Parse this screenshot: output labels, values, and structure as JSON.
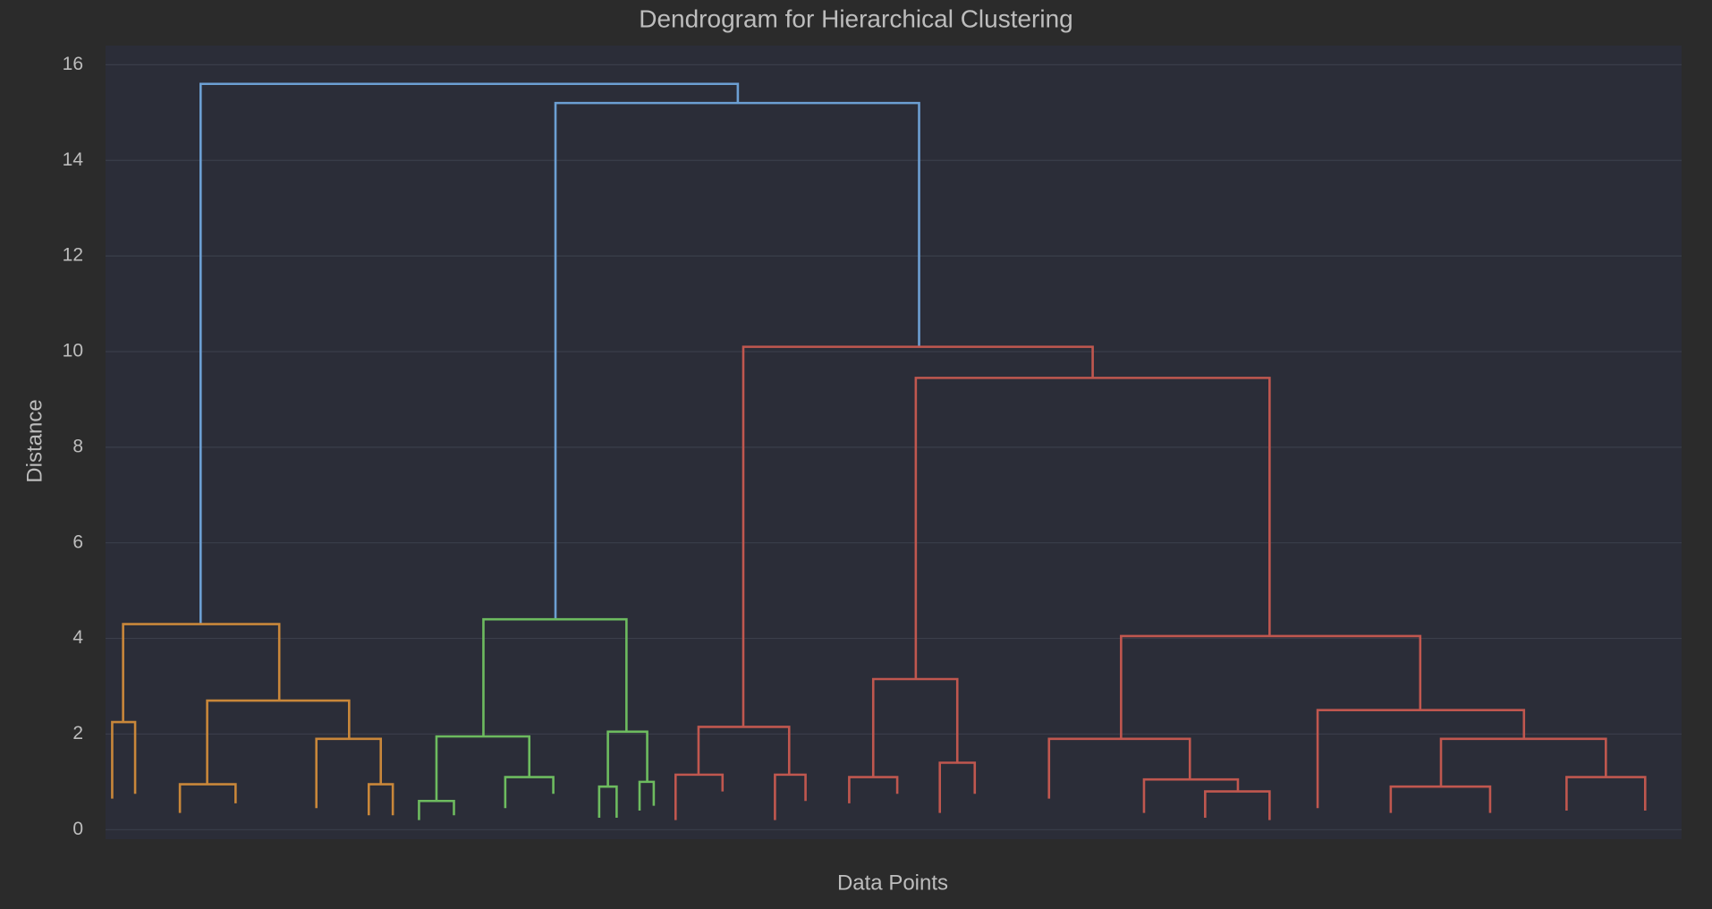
{
  "chart_data": {
    "type": "dendrogram",
    "title": "Dendrogram for Hierarchical Clustering",
    "x_label": "Data Points",
    "y_label": "Distance",
    "ylim": [
      -0.2,
      16.4
    ],
    "yticks": [
      0,
      2,
      4,
      6,
      8,
      10,
      12,
      14,
      16
    ],
    "xlim": [
      0,
      1450
    ],
    "grid": true,
    "links": [
      {
        "x": [
          92,
          92,
          584,
          584
        ],
        "y": [
          4.3,
          15.6,
          15.6,
          15.2
        ],
        "color": "#6c9fd3"
      },
      {
        "x": [
          417,
          417,
          750,
          750
        ],
        "y": [
          4.4,
          15.2,
          15.2,
          10.1
        ],
        "color": "#6c9fd3"
      },
      {
        "x": [
          21,
          21,
          164,
          164
        ],
        "y": [
          2.25,
          4.3,
          4.3,
          2.7
        ],
        "color": "#c9873a"
      },
      {
        "x": [
          11,
          11,
          32,
          32
        ],
        "y": [
          0.65,
          2.25,
          2.25,
          0.75
        ],
        "color": "#c9873a"
      },
      {
        "x": [
          98,
          98,
          228,
          228
        ],
        "y": [
          0.95,
          2.7,
          2.7,
          1.9
        ],
        "color": "#c9873a"
      },
      {
        "x": [
          198,
          198,
          257,
          257
        ],
        "y": [
          0.45,
          1.9,
          1.9,
          0.95
        ],
        "color": "#c9873a"
      },
      {
        "x": [
          73,
          73,
          124,
          124
        ],
        "y": [
          0.35,
          0.95,
          0.95,
          0.55
        ],
        "color": "#c9873a"
      },
      {
        "x": [
          246,
          246,
          268,
          268
        ],
        "y": [
          0.3,
          0.95,
          0.95,
          0.3
        ],
        "color": "#c9873a"
      },
      {
        "x": [
          351,
          351,
          482,
          482
        ],
        "y": [
          1.95,
          4.4,
          4.4,
          2.05
        ],
        "color": "#6dbb5f"
      },
      {
        "x": [
          308,
          308,
          393,
          393
        ],
        "y": [
          0.6,
          1.95,
          1.95,
          1.1
        ],
        "color": "#6dbb5f"
      },
      {
        "x": [
          292,
          292,
          324,
          324
        ],
        "y": [
          0.2,
          0.6,
          0.6,
          0.3
        ],
        "color": "#6dbb5f"
      },
      {
        "x": [
          371,
          371,
          415,
          415
        ],
        "y": [
          0.45,
          1.1,
          1.1,
          0.75
        ],
        "color": "#6dbb5f"
      },
      {
        "x": [
          465,
          465,
          501,
          501
        ],
        "y": [
          0.9,
          2.05,
          2.05,
          1.0
        ],
        "color": "#6dbb5f"
      },
      {
        "x": [
          457,
          457,
          473,
          473
        ],
        "y": [
          0.25,
          0.9,
          0.9,
          0.25
        ],
        "color": "#6dbb5f"
      },
      {
        "x": [
          494,
          494,
          507,
          507
        ],
        "y": [
          0.4,
          1.0,
          1.0,
          0.5
        ],
        "color": "#6dbb5f"
      },
      {
        "x": [
          589,
          589,
          909,
          909
        ],
        "y": [
          2.15,
          10.1,
          10.1,
          9.45
        ],
        "color": "#c0574f"
      },
      {
        "x": [
          747,
          747,
          1071,
          1071
        ],
        "y": [
          3.15,
          9.45,
          9.45,
          4.05
        ],
        "color": "#c0574f"
      },
      {
        "x": [
          548,
          548,
          631,
          631
        ],
        "y": [
          1.15,
          2.15,
          2.15,
          1.15
        ],
        "color": "#c0574f"
      },
      {
        "x": [
          527,
          527,
          570,
          570
        ],
        "y": [
          0.2,
          1.15,
          1.15,
          0.8
        ],
        "color": "#c0574f"
      },
      {
        "x": [
          618,
          618,
          646,
          646
        ],
        "y": [
          0.2,
          1.15,
          1.15,
          0.6
        ],
        "color": "#c0574f"
      },
      {
        "x": [
          708,
          708,
          785,
          785
        ],
        "y": [
          1.1,
          3.15,
          3.15,
          1.4
        ],
        "color": "#c0574f"
      },
      {
        "x": [
          686,
          686,
          730,
          730
        ],
        "y": [
          0.55,
          1.1,
          1.1,
          0.75
        ],
        "color": "#c0574f"
      },
      {
        "x": [
          769,
          769,
          801,
          801
        ],
        "y": [
          0.35,
          1.4,
          1.4,
          0.75
        ],
        "color": "#c0574f"
      },
      {
        "x": [
          935,
          935,
          1209,
          1209
        ],
        "y": [
          1.9,
          4.05,
          4.05,
          2.5
        ],
        "color": "#c0574f"
      },
      {
        "x": [
          869,
          869,
          998,
          998
        ],
        "y": [
          0.65,
          1.9,
          1.9,
          1.05
        ],
        "color": "#c0574f"
      },
      {
        "x": [
          956,
          956,
          1042,
          1042
        ],
        "y": [
          0.35,
          1.05,
          1.05,
          0.8
        ],
        "color": "#c0574f"
      },
      {
        "x": [
          1012,
          1012,
          1071,
          1071
        ],
        "y": [
          0.25,
          0.8,
          0.8,
          0.2
        ],
        "color": "#c0574f"
      },
      {
        "x": [
          1115,
          1115,
          1304,
          1304
        ],
        "y": [
          0.45,
          2.5,
          2.5,
          1.9
        ],
        "color": "#c0574f"
      },
      {
        "x": [
          1228,
          1228,
          1379,
          1379
        ],
        "y": [
          0.9,
          1.9,
          1.9,
          1.1
        ],
        "color": "#c0574f"
      },
      {
        "x": [
          1182,
          1182,
          1273,
          1273
        ],
        "y": [
          0.35,
          0.9,
          0.9,
          0.35
        ],
        "color": "#c0574f"
      },
      {
        "x": [
          1343,
          1343,
          1415,
          1415
        ],
        "y": [
          0.4,
          1.1,
          1.1,
          0.4
        ],
        "color": "#c0574f"
      }
    ]
  }
}
